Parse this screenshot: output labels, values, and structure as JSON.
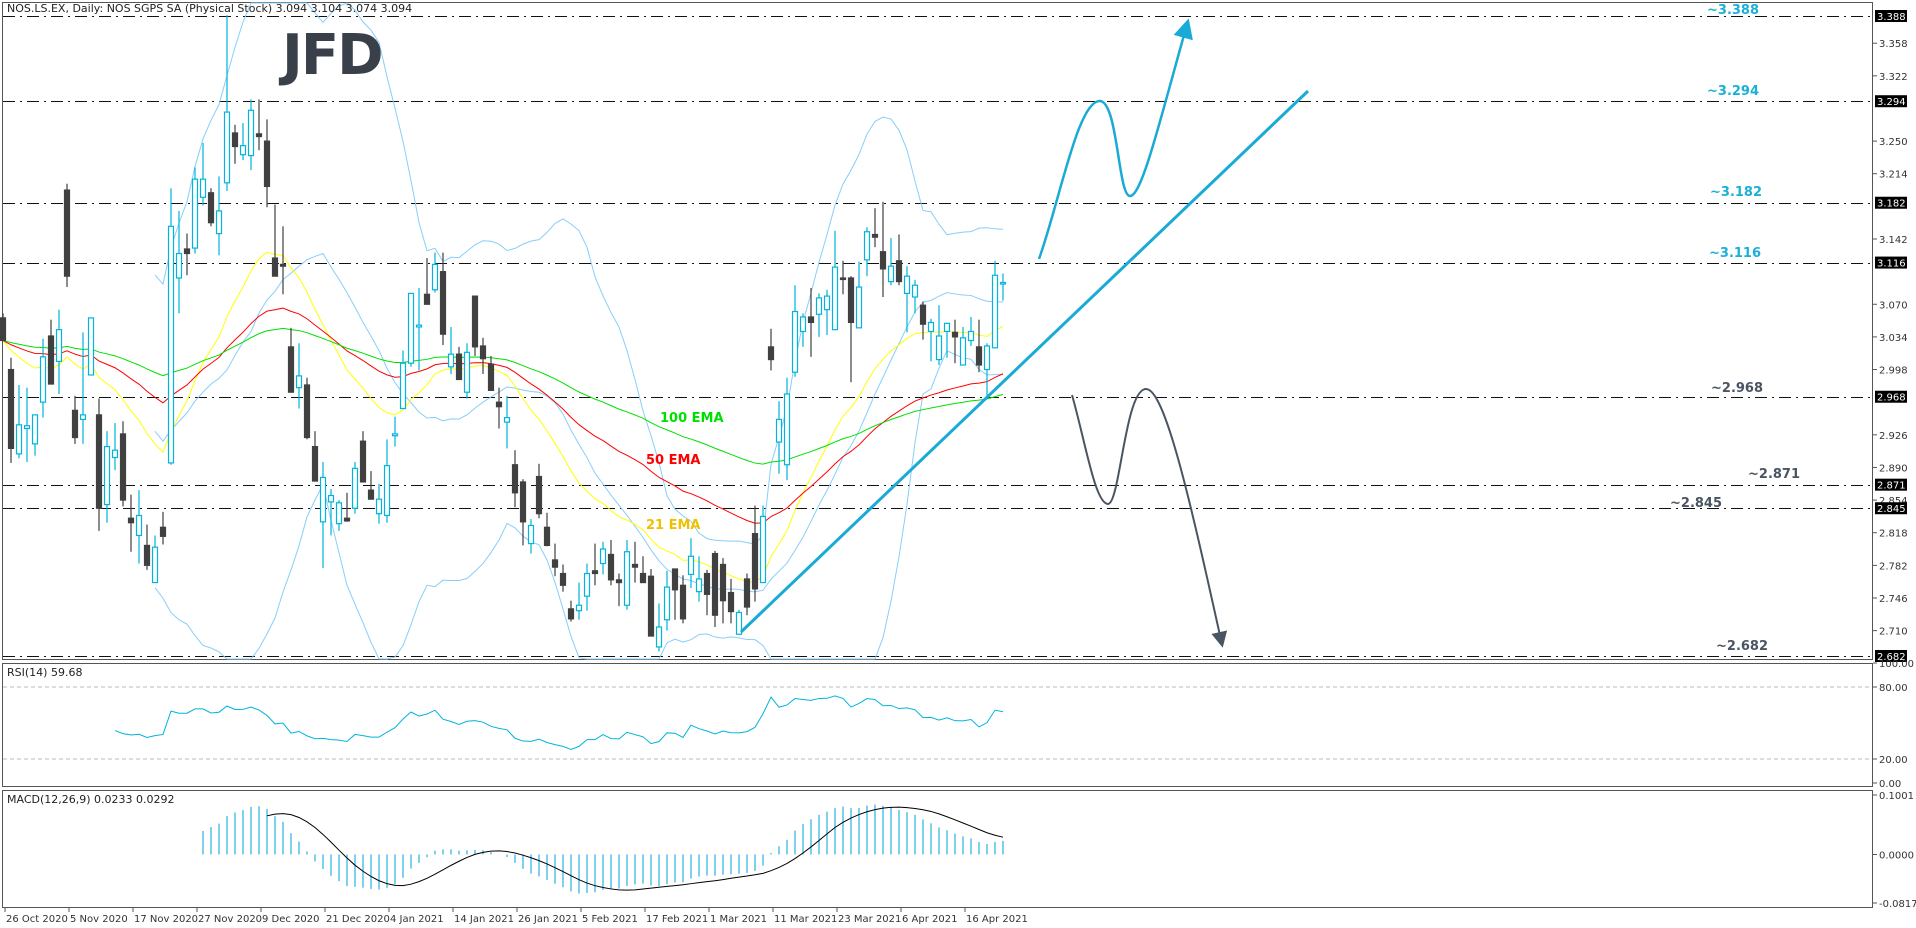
{
  "header": {
    "title": "NOS.LS.EX, Daily:  NOS SGPS SA (Physical Stock)  3.094 3.104 3.074 3.094"
  },
  "logo": "JFD",
  "colors": {
    "bull": "#00b4dc",
    "bear": "#404040",
    "ema21": "#ffff00",
    "ema50": "#ff0000",
    "ema100": "#00e000",
    "bollinger": "#87cefa",
    "trend": "#1aaad6",
    "up_label": "#1ab0d8",
    "down_label": "#4a5563",
    "macd_hist": "#3ab8e0",
    "macd_signal": "#000000",
    "rsi": "#00b4dc"
  },
  "chart_data": {
    "type": "candlestick",
    "title": "NOS.LS.EX, Daily:  NOS SGPS SA (Physical Stock)  3.094 3.104 3.074 3.094",
    "ylim": [
      2.682,
      3.388
    ],
    "candle_format": [
      "open",
      "high",
      "low",
      "close"
    ],
    "candles": [
      [
        3.055,
        3.06,
        3.03,
        3.03
      ],
      [
        2.998,
        3.011,
        2.895,
        2.911
      ],
      [
        2.905,
        2.981,
        2.9,
        2.937
      ],
      [
        2.933,
        2.978,
        2.896,
        2.936
      ],
      [
        2.916,
        2.948,
        2.903,
        2.948
      ],
      [
        2.962,
        3.032,
        2.945,
        3.012
      ],
      [
        3.035,
        3.053,
        2.982,
        2.982
      ],
      [
        3.007,
        3.064,
        2.971,
        3.042
      ],
      [
        3.196,
        3.203,
        3.089,
        3.101
      ],
      [
        2.953,
        2.969,
        2.916,
        2.923
      ],
      [
        2.943,
        3.039,
        2.916,
        2.948
      ],
      [
        2.992,
        3.055,
        2.992,
        3.055
      ],
      [
        2.948,
        2.966,
        2.82,
        2.845
      ],
      [
        2.849,
        2.93,
        2.829,
        2.913
      ],
      [
        2.901,
        2.939,
        2.887,
        2.909
      ],
      [
        2.927,
        2.941,
        2.847,
        2.854
      ],
      [
        2.834,
        2.86,
        2.797,
        2.829
      ],
      [
        2.815,
        2.865,
        2.784,
        2.837
      ],
      [
        2.804,
        2.827,
        2.777,
        2.782
      ],
      [
        2.763,
        2.815,
        2.763,
        2.802
      ],
      [
        2.824,
        2.841,
        2.805,
        2.814
      ],
      [
        2.895,
        3.198,
        2.893,
        3.156
      ],
      [
        3.099,
        3.173,
        3.06,
        3.126
      ],
      [
        3.131,
        3.148,
        3.102,
        3.126
      ],
      [
        3.132,
        3.221,
        3.126,
        3.208
      ],
      [
        3.188,
        3.248,
        3.179,
        3.208
      ],
      [
        3.193,
        3.198,
        3.156,
        3.16
      ],
      [
        3.148,
        3.211,
        3.124,
        3.173
      ],
      [
        3.204,
        3.389,
        3.195,
        3.282
      ],
      [
        3.259,
        3.268,
        3.225,
        3.244
      ],
      [
        3.235,
        3.27,
        3.229,
        3.245
      ],
      [
        3.234,
        3.296,
        3.218,
        3.284
      ],
      [
        3.258,
        3.296,
        3.24,
        3.255
      ],
      [
        3.25,
        3.274,
        3.177,
        3.2
      ],
      [
        3.121,
        3.18,
        3.101,
        3.101
      ],
      [
        3.114,
        3.156,
        3.081,
        3.112
      ],
      [
        3.023,
        3.044,
        2.973,
        2.973
      ],
      [
        2.978,
        3.027,
        2.955,
        2.991
      ],
      [
        2.981,
        2.989,
        2.921,
        2.923
      ],
      [
        2.913,
        2.93,
        2.875,
        2.875
      ],
      [
        2.83,
        2.896,
        2.779,
        2.879
      ],
      [
        2.852,
        2.866,
        2.815,
        2.859
      ],
      [
        2.828,
        2.854,
        2.82,
        2.851
      ],
      [
        2.834,
        2.862,
        2.83,
        2.831
      ],
      [
        2.845,
        2.896,
        2.839,
        2.889
      ],
      [
        2.919,
        2.93,
        2.874,
        2.874
      ],
      [
        2.865,
        2.886,
        2.855,
        2.855
      ],
      [
        2.839,
        2.872,
        2.828,
        2.855
      ],
      [
        2.837,
        2.921,
        2.829,
        2.892
      ],
      [
        2.925,
        2.946,
        2.913,
        2.927
      ],
      [
        2.955,
        3.019,
        2.955,
        3.005
      ],
      [
        3.005,
        3.082,
        3.001,
        3.082
      ],
      [
        3.045,
        3.088,
        2.997,
        3.047
      ],
      [
        3.081,
        3.121,
        3.07,
        3.07
      ],
      [
        3.086,
        3.127,
        3.083,
        3.114
      ],
      [
        3.106,
        3.127,
        3.025,
        3.037
      ],
      [
        3.001,
        3.045,
        2.993,
        3.015
      ],
      [
        3.015,
        3.023,
        2.987,
        2.987
      ],
      [
        2.973,
        3.027,
        2.966,
        3.017
      ],
      [
        3.079,
        3.079,
        3.013,
        3.023
      ],
      [
        3.024,
        3.033,
        2.993,
        3.01
      ],
      [
        3.004,
        3.013,
        2.975,
        2.975
      ],
      [
        2.962,
        2.978,
        2.933,
        2.957
      ],
      [
        2.94,
        2.969,
        2.911,
        2.945
      ],
      [
        2.893,
        2.909,
        2.846,
        2.862
      ],
      [
        2.874,
        2.877,
        2.804,
        2.83
      ],
      [
        2.806,
        2.833,
        2.795,
        2.826
      ],
      [
        2.88,
        2.894,
        2.834,
        2.839
      ],
      [
        2.824,
        2.84,
        2.803,
        2.804
      ],
      [
        2.788,
        2.806,
        2.77,
        2.78
      ],
      [
        2.773,
        2.783,
        2.753,
        2.76
      ],
      [
        2.734,
        2.743,
        2.72,
        2.723
      ],
      [
        2.732,
        2.763,
        2.722,
        2.738
      ],
      [
        2.748,
        2.784,
        2.732,
        2.773
      ],
      [
        2.776,
        2.806,
        2.76,
        2.773
      ],
      [
        2.784,
        2.808,
        2.772,
        2.8
      ],
      [
        2.794,
        2.81,
        2.76,
        2.766
      ],
      [
        2.766,
        2.773,
        2.737,
        2.763
      ],
      [
        2.738,
        2.81,
        2.733,
        2.797
      ],
      [
        2.783,
        2.808,
        2.763,
        2.78
      ],
      [
        2.773,
        2.792,
        2.763,
        2.763
      ],
      [
        2.77,
        2.778,
        2.704,
        2.704
      ],
      [
        2.692,
        2.74,
        2.687,
        2.714
      ],
      [
        2.722,
        2.776,
        2.71,
        2.758
      ],
      [
        2.778,
        2.778,
        2.722,
        2.755
      ],
      [
        2.76,
        2.771,
        2.718,
        2.723
      ],
      [
        2.772,
        2.812,
        2.757,
        2.792
      ],
      [
        2.753,
        2.792,
        2.742,
        2.767
      ],
      [
        2.773,
        2.777,
        2.727,
        2.75
      ],
      [
        2.795,
        2.798,
        2.714,
        2.727
      ],
      [
        2.783,
        2.79,
        2.718,
        2.743
      ],
      [
        2.752,
        2.767,
        2.718,
        2.731
      ],
      [
        2.706,
        2.733,
        2.706,
        2.73
      ],
      [
        2.767,
        2.773,
        2.727,
        2.736
      ],
      [
        2.817,
        2.848,
        2.742,
        2.756
      ],
      [
        2.763,
        2.848,
        2.763,
        2.836
      ],
      [
        3.023,
        3.043,
        2.997,
        3.009
      ],
      [
        2.918,
        2.963,
        2.883,
        2.943
      ],
      [
        2.893,
        2.989,
        2.876,
        2.971
      ],
      [
        2.995,
        3.091,
        2.99,
        3.062
      ],
      [
        3.04,
        3.06,
        3.023,
        3.056
      ],
      [
        3.056,
        3.088,
        3.012,
        3.05
      ],
      [
        3.059,
        3.082,
        3.034,
        3.077
      ],
      [
        3.064,
        3.086,
        3.036,
        3.079
      ],
      [
        3.042,
        3.151,
        3.042,
        3.111
      ],
      [
        3.099,
        3.118,
        3.081,
        3.098
      ],
      [
        3.099,
        3.101,
        2.984,
        3.05
      ],
      [
        3.044,
        3.117,
        3.044,
        3.089
      ],
      [
        3.119,
        3.155,
        3.101,
        3.15
      ],
      [
        3.147,
        3.176,
        3.133,
        3.144
      ],
      [
        3.128,
        3.183,
        3.078,
        3.109
      ],
      [
        3.095,
        3.143,
        3.091,
        3.112
      ],
      [
        3.118,
        3.147,
        3.091,
        3.095
      ],
      [
        3.082,
        3.112,
        3.039,
        3.101
      ],
      [
        3.078,
        3.097,
        3.06,
        3.091
      ],
      [
        3.069,
        3.073,
        3.031,
        3.048
      ],
      [
        3.04,
        3.054,
        3.007,
        3.05
      ],
      [
        3.009,
        3.069,
        3.003,
        3.035
      ],
      [
        3.04,
        3.049,
        3.011,
        3.049
      ],
      [
        3.039,
        3.053,
        3.005,
        3.034
      ],
      [
        3.003,
        3.045,
        3.003,
        3.033
      ],
      [
        3.03,
        3.056,
        3.024,
        3.04
      ],
      [
        3.023,
        3.053,
        2.995,
        3.003
      ],
      [
        2.998,
        3.027,
        2.969,
        3.024
      ],
      [
        3.022,
        3.118,
        3.022,
        3.102
      ],
      [
        3.094,
        3.104,
        3.074,
        3.094
      ]
    ],
    "price_axis_ticks": [
      "3.358",
      "3.322",
      "3.250",
      "3.214",
      "3.142",
      "3.070",
      "3.034",
      "2.998",
      "2.926",
      "2.890",
      "2.854",
      "2.818",
      "2.782",
      "2.746",
      "2.710"
    ],
    "levels": [
      "3.388",
      "3.294",
      "3.182",
      "3.116",
      "2.968",
      "2.871",
      "2.845",
      "2.682"
    ],
    "level_labels": [
      "~3.388",
      "~3.294",
      "~3.182",
      "~3.116",
      "~2.968",
      "~2.871",
      "~2.845",
      "~2.682"
    ],
    "date_labels": [
      "26 Oct 2020",
      "5 Nov 2020",
      "17 Nov 2020",
      "27 Nov 2020",
      "9 Dec 2020",
      "21 Dec 2020",
      "4 Jan 2021",
      "14 Jan 2021",
      "26 Jan 2021",
      "5 Feb 2021",
      "17 Feb 2021",
      "1 Mar 2021",
      "11 Mar 2021",
      "23 Mar 2021",
      "6 Apr 2021",
      "16 Apr 2021"
    ],
    "ema_periods": [
      21,
      50,
      100
    ],
    "ema_labels": [
      "21 EMA",
      "50 EMA",
      "100 EMA"
    ],
    "bollinger": {
      "period": 20,
      "deviations": 2
    },
    "rsi": {
      "label": "RSI(14) 59.68",
      "period": 14,
      "ylim": [
        0,
        100
      ],
      "ticks": [
        "100.00",
        "80.00",
        "20.00",
        "0.00"
      ],
      "levels": [
        80,
        20
      ]
    },
    "macd": {
      "label": "MACD(12,26,9) 0.0233 0.0292",
      "fast": 12,
      "slow": 26,
      "signal": 9,
      "ylim": [
        -0.0817,
        0.1001
      ],
      "ticks": [
        "0.1001",
        "0.0000",
        "-0.0817"
      ]
    }
  }
}
